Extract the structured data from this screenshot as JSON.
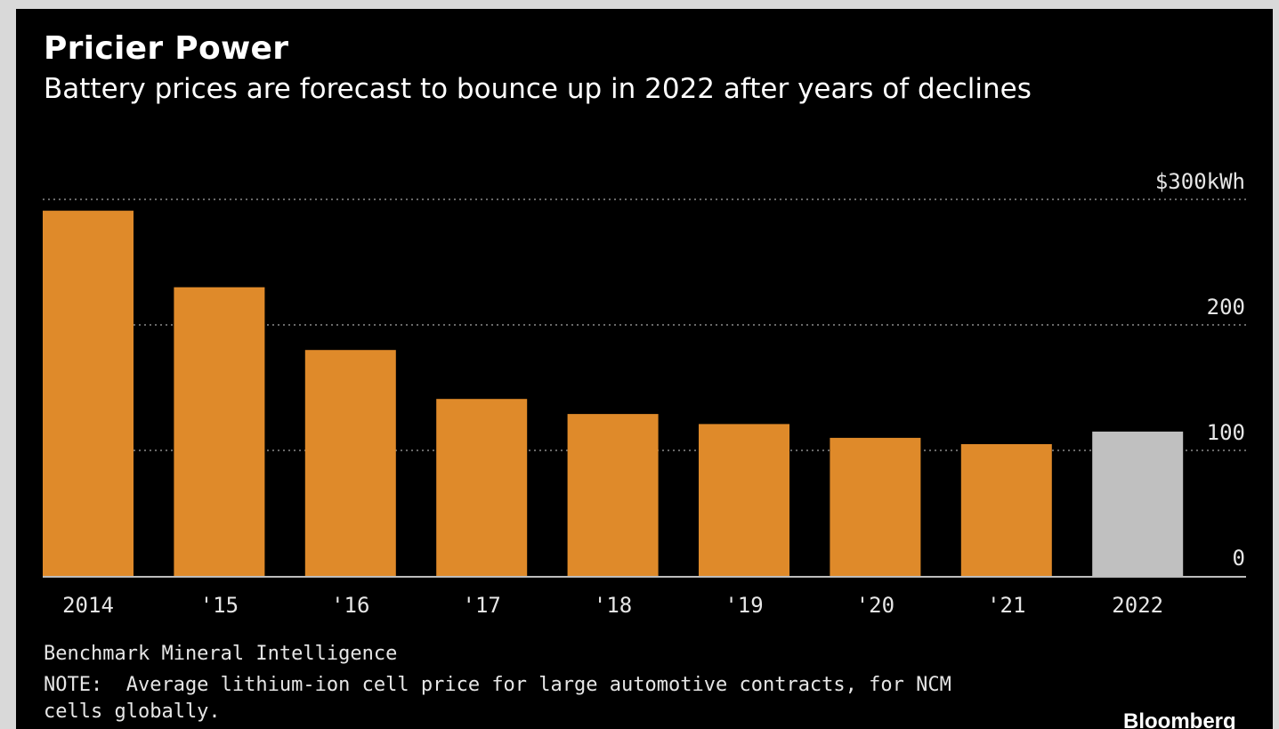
{
  "title": "Pricier Power",
  "subtitle": "Battery prices are forecast to bounce up in 2022 after years of declines",
  "source": "Benchmark Mineral Intelligence",
  "note": "NOTE:  Average lithium-ion cell price for large automotive contracts, for NCM cells globally.",
  "brand": "Bloomberg",
  "colors": {
    "background": "#000000",
    "actual": "#df8a2a",
    "forecast": "#c0c0c0",
    "grid": "#8a8a8a",
    "text": "#ffffff"
  },
  "chart_data": {
    "type": "bar",
    "categories": [
      "2014",
      "'15",
      "'16",
      "'17",
      "'18",
      "'19",
      "'20",
      "'21",
      "2022"
    ],
    "values": [
      291,
      230,
      180,
      141,
      129,
      121,
      110,
      105,
      115
    ],
    "forecast_categories": [
      "2022"
    ],
    "y_ticks": [
      {
        "value": 0,
        "label": "0"
      },
      {
        "value": 100,
        "label": "100"
      },
      {
        "value": 200,
        "label": "200"
      },
      {
        "value": 300,
        "label": "$300kWh"
      }
    ],
    "ylim": [
      0,
      300
    ],
    "y_axis_side": "right",
    "grid": "dotted horizontal"
  }
}
